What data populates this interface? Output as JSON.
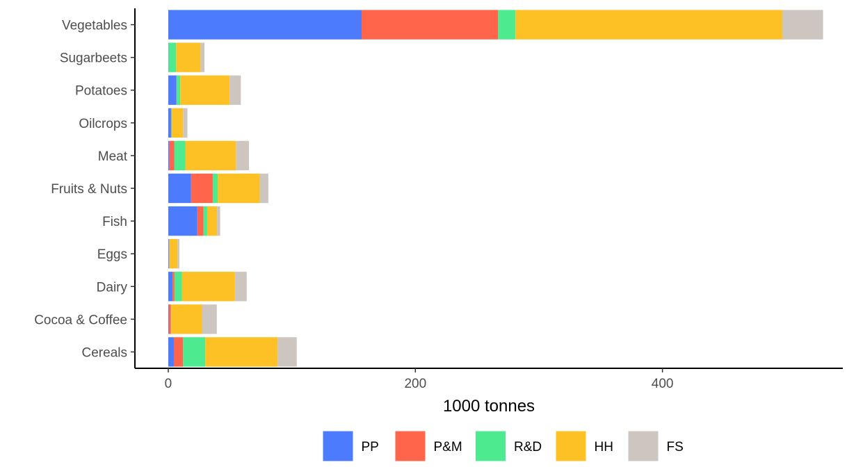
{
  "chart_data": {
    "type": "bar",
    "orientation": "horizontal",
    "stacked": true,
    "title": "",
    "xlabel": "1000 tonnes",
    "ylabel": "",
    "xlim": [
      -27,
      546
    ],
    "x_ticks": [
      0,
      200,
      400
    ],
    "categories": [
      "Cereals",
      "Cocoa & Coffee",
      "Dairy",
      "Eggs",
      "Fish",
      "Fruits & Nuts",
      "Meat",
      "Oilcrops",
      "Potatoes",
      "Sugarbeets",
      "Vegetables"
    ],
    "series": [
      {
        "name": "PP",
        "color": "#4C7BFE",
        "values": [
          4.5,
          0.3,
          3.5,
          0.5,
          23.5,
          18.5,
          0.8,
          2.2,
          6.5,
          0.2,
          156.5
        ]
      },
      {
        "name": "P&M",
        "color": "#FE654A",
        "values": [
          7.5,
          1.8,
          1.5,
          0.3,
          5.0,
          17.5,
          4.0,
          0.3,
          0.2,
          0.1,
          110.5
        ]
      },
      {
        "name": "R&D",
        "color": "#4EEA8F",
        "values": [
          18.0,
          0.2,
          6.0,
          0.2,
          3.0,
          4.0,
          9.0,
          0.5,
          3.0,
          6.0,
          14.0
        ]
      },
      {
        "name": "HH",
        "color": "#FDC126",
        "values": [
          58.5,
          25.0,
          43.0,
          6.5,
          8.0,
          34.0,
          41.0,
          9.0,
          40.0,
          20.0,
          216.0
        ]
      },
      {
        "name": "FS",
        "color": "#CDC5C0",
        "values": [
          15.5,
          12.0,
          9.5,
          1.5,
          2.5,
          7.0,
          10.5,
          3.5,
          9.0,
          3.0,
          33.0
        ]
      }
    ],
    "legend": {
      "position": "bottom"
    },
    "grid": false
  }
}
